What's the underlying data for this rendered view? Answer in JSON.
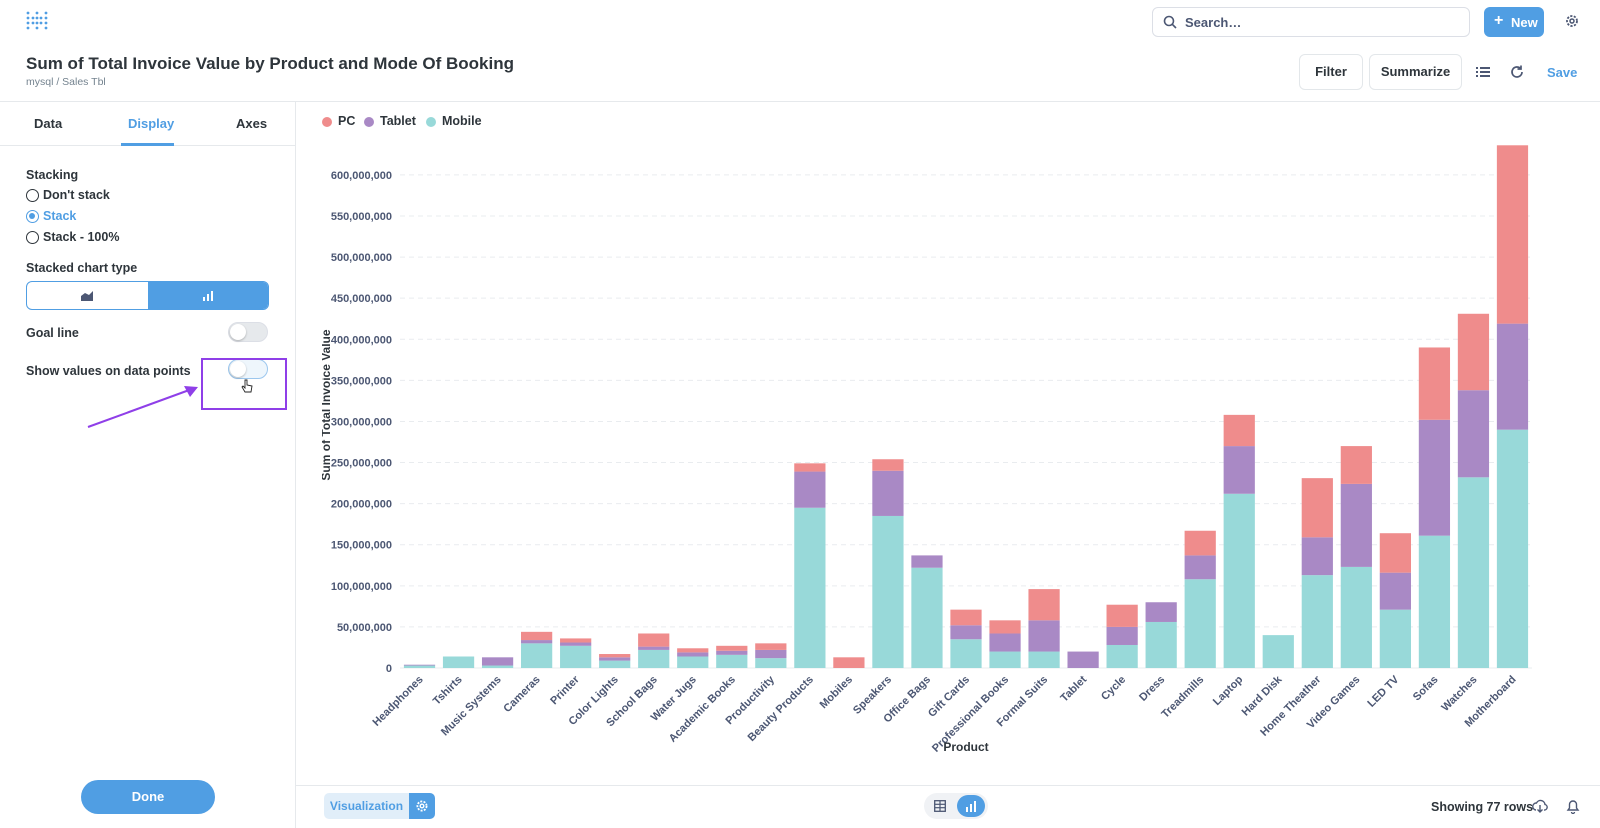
{
  "header": {
    "title": "Sum of Total Invoice Value by Product and Mode Of Booking",
    "breadcrumb": "mysql  /  Sales Tbl",
    "search_placeholder": "Search…",
    "new_label": "New",
    "filter_label": "Filter",
    "summarize_label": "Summarize",
    "save_label": "Save"
  },
  "sidebar": {
    "tabs": [
      "Data",
      "Display",
      "Axes"
    ],
    "active_tab": "Display",
    "stacking_label": "Stacking",
    "stacking_options": [
      "Don't stack",
      "Stack",
      "Stack - 100%"
    ],
    "stacking_selected": "Stack",
    "stacked_chart_type_label": "Stacked chart type",
    "stacked_chart_type_options": [
      "area-icon",
      "bar-icon"
    ],
    "stacked_chart_type_selected": "bar",
    "goal_line_label": "Goal line",
    "goal_line_on": false,
    "show_values_label": "Show values on data points",
    "show_values_on": false,
    "done_label": "Done"
  },
  "footer": {
    "visualization_label": "Visualization",
    "rows_text": "Showing 77 rows"
  },
  "colors": {
    "accent": "#509ee3",
    "pc": "#ef8c8c",
    "tablet": "#a989c5",
    "mobile": "#98d9d9",
    "annotation": "#8f3fe8"
  },
  "chart_data": {
    "type": "bar",
    "stacked": true,
    "xlabel": "Product",
    "ylabel": "Sum of Total Invoice Value",
    "ylim": [
      0,
      640000000
    ],
    "yticks": [
      0,
      50000000,
      100000000,
      150000000,
      200000000,
      250000000,
      300000000,
      350000000,
      400000000,
      450000000,
      500000000,
      550000000,
      600000000
    ],
    "ytick_labels": [
      "0",
      "50,000,000",
      "100,000,000",
      "150,000,000",
      "200,000,000",
      "250,000,000",
      "300,000,000",
      "350,000,000",
      "400,000,000",
      "450,000,000",
      "500,000,000",
      "550,000,000",
      "600,000,000"
    ],
    "legend_position": "top-left",
    "categories": [
      "Headphones",
      "Tshirts",
      "Music Systems",
      "Cameras",
      "Printer",
      "Color Lights",
      "School Bags",
      "Water Jugs",
      "Academic Books",
      "Productivity",
      "Beauty Products",
      "Mobiles",
      "Speakers",
      "Office Bags",
      "Gift Cards",
      "Professional Books",
      "Formal Suits",
      "Tablet",
      "Cycle",
      "Dress",
      "Treadmills",
      "Laptop",
      "Hard Disk",
      "Home Theather",
      "Video Games",
      "LED TV",
      "Sofas",
      "Watches",
      "Motherboard"
    ],
    "series": [
      {
        "name": "Mobile",
        "color": "#98d9d9",
        "values": [
          3000000,
          14000000,
          3000000,
          30000000,
          27000000,
          9000000,
          22000000,
          14000000,
          16000000,
          12000000,
          195000000,
          0,
          185000000,
          122000000,
          35000000,
          20000000,
          20000000,
          0,
          28000000,
          56000000,
          108000000,
          212000000,
          40000000,
          113000000,
          123000000,
          71000000,
          161000000,
          232000000,
          290000000
        ]
      },
      {
        "name": "Tablet",
        "color": "#a989c5",
        "values": [
          1000000,
          0,
          10000000,
          4000000,
          4000000,
          4000000,
          4000000,
          5000000,
          5000000,
          10000000,
          44000000,
          0,
          55000000,
          15000000,
          17000000,
          22000000,
          38000000,
          20000000,
          22000000,
          24000000,
          29000000,
          58000000,
          0,
          46000000,
          101000000,
          45000000,
          141000000,
          106000000,
          129000000
        ]
      },
      {
        "name": "PC",
        "color": "#ef8c8c",
        "values": [
          0,
          0,
          0,
          10000000,
          5000000,
          4000000,
          16000000,
          5000000,
          6000000,
          8000000,
          10000000,
          13000000,
          14000000,
          0,
          19000000,
          16000000,
          38000000,
          0,
          27000000,
          0,
          30000000,
          38000000,
          0,
          72000000,
          46000000,
          48000000,
          88000000,
          93000000,
          217000000
        ]
      }
    ],
    "legend_order": [
      "PC",
      "Tablet",
      "Mobile"
    ]
  }
}
